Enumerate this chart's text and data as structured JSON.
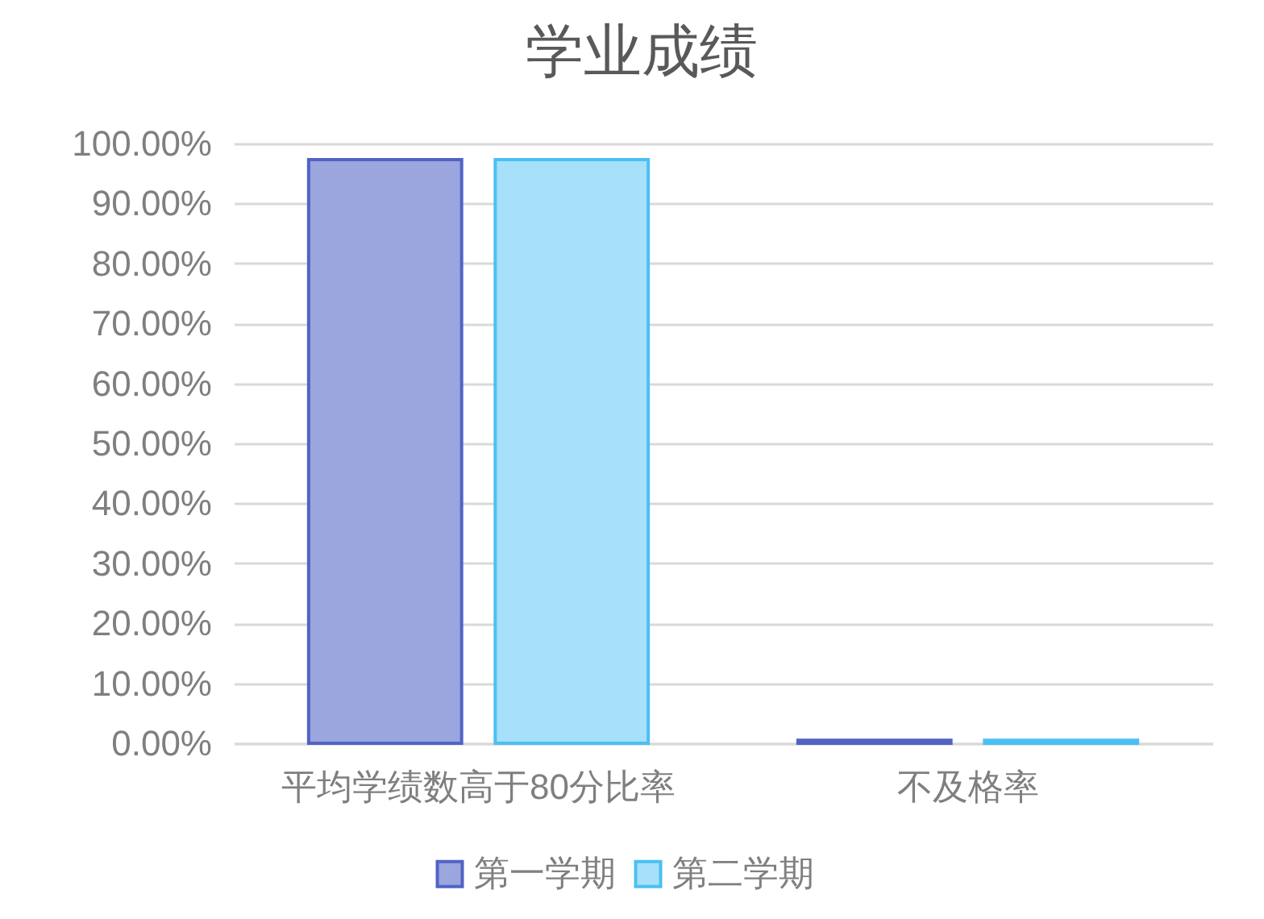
{
  "chart_data": {
    "type": "bar",
    "title": "学业成绩",
    "categories": [
      "平均学绩数高于80分比率",
      "不及格率"
    ],
    "series": [
      {
        "name": "第一学期",
        "color": "#9ba5de",
        "values": [
          97.3,
          0.5
        ]
      },
      {
        "name": "第二学期",
        "color": "#a6e0f9",
        "values": [
          97.3,
          0.5
        ]
      }
    ],
    "ylim": [
      0,
      100
    ],
    "yticks": [
      {
        "value": 0,
        "label": "0.00%"
      },
      {
        "value": 10,
        "label": "10.00%"
      },
      {
        "value": 20,
        "label": "20.00%"
      },
      {
        "value": 30,
        "label": "30.00%"
      },
      {
        "value": 40,
        "label": "40.00%"
      },
      {
        "value": 50,
        "label": "50.00%"
      },
      {
        "value": 60,
        "label": "60.00%"
      },
      {
        "value": 70,
        "label": "70.00%"
      },
      {
        "value": 80,
        "label": "80.00%"
      },
      {
        "value": 90,
        "label": "90.00%"
      },
      {
        "value": 100,
        "label": "100.00%"
      }
    ],
    "grid": "y",
    "legend": "bottom"
  }
}
